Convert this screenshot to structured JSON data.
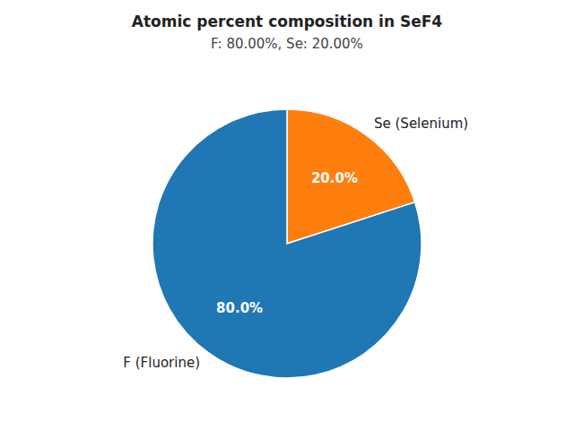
{
  "chart_data": {
    "type": "pie",
    "title": "Atomic percent composition in SeF4",
    "subtitle": "F: 80.00%, Se: 20.00%",
    "categories": [
      "Se (Selenium)",
      "F (Fluorine)"
    ],
    "values": [
      20.0,
      80.0
    ],
    "value_labels": [
      "20.0%",
      "80.0%"
    ],
    "colors": [
      "#ff7f0e",
      "#1f77b4"
    ],
    "data_labels": true
  }
}
